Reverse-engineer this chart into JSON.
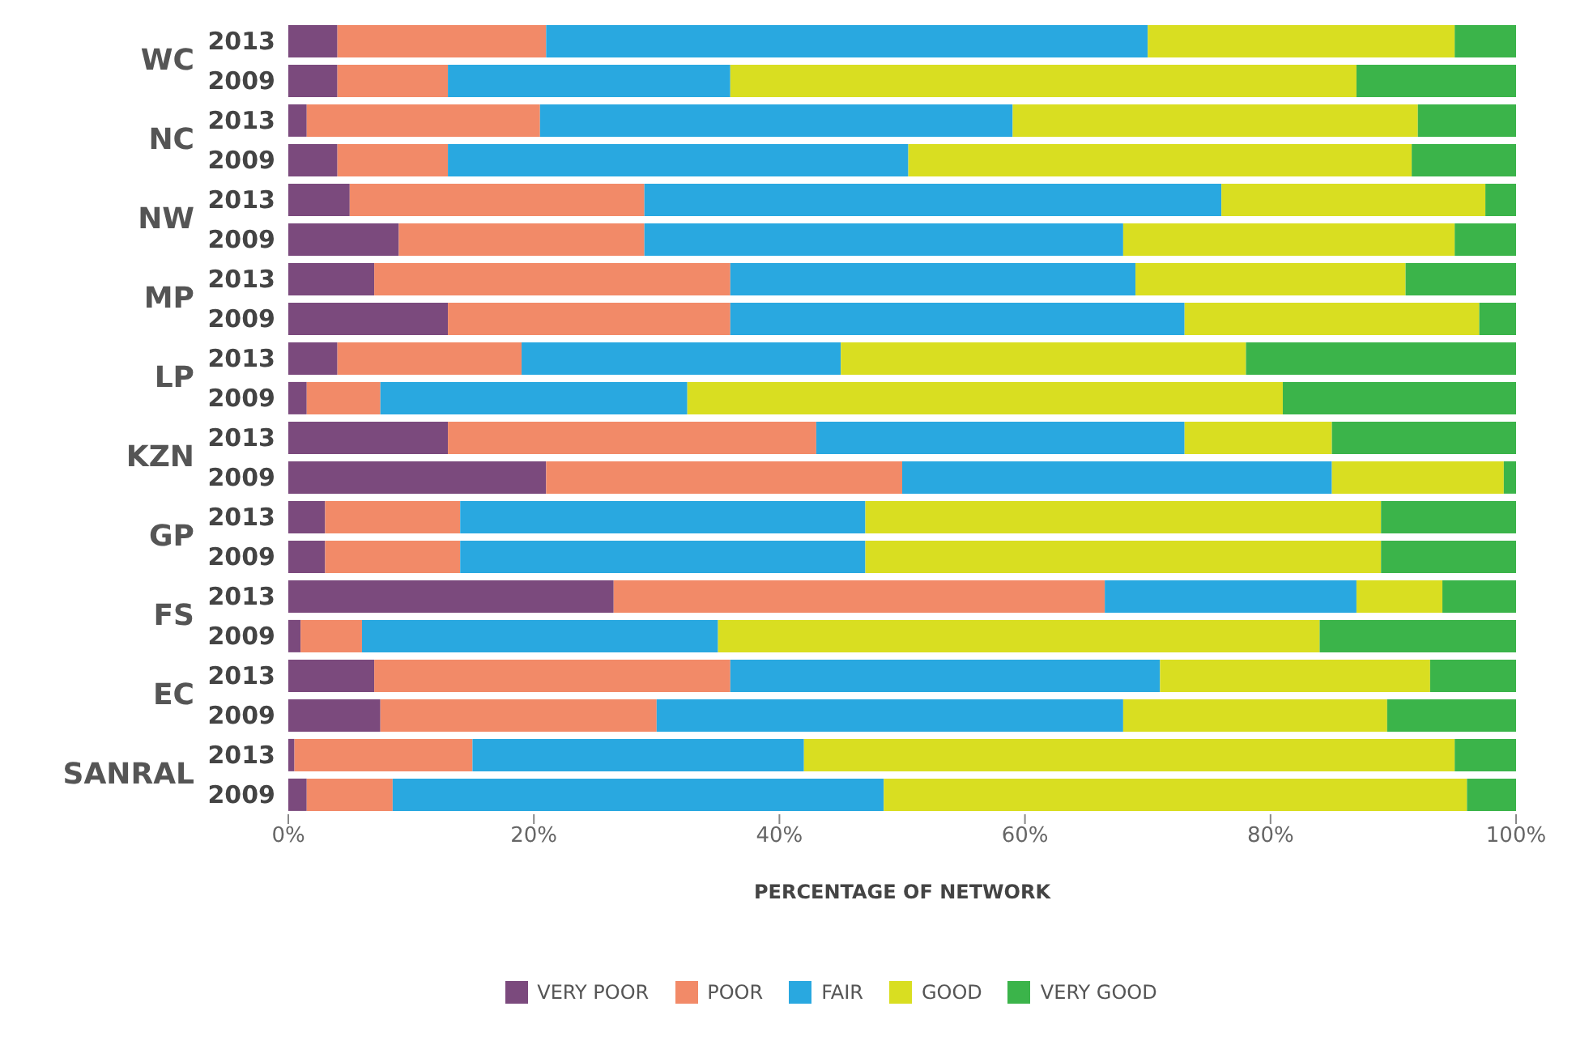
{
  "chart_data": {
    "type": "bar",
    "orientation": "horizontal",
    "stacked": true,
    "xlabel": "PERCENTAGE OF NETWORK",
    "categories": [
      "2013",
      "2009",
      "2013",
      "2009",
      "2013",
      "2009",
      "2013",
      "2009",
      "2013",
      "2009",
      "2013",
      "2009",
      "2013",
      "2009",
      "2013",
      "2009",
      "2013",
      "2009",
      "2013",
      "2009"
    ],
    "annotations": [
      "WC",
      "NC",
      "NW",
      "MP",
      "LP",
      "KZN",
      "GP",
      "FS",
      "EC",
      "SANRAL"
    ],
    "series": [
      {
        "name": "VERY POOR",
        "color": "#7b4a7d",
        "values": [
          4,
          4,
          1.5,
          4,
          5,
          9,
          7,
          13,
          4,
          1.5,
          13,
          21,
          3,
          3,
          26.5,
          1,
          7,
          7.5,
          0.5,
          1.5
        ]
      },
      {
        "name": "POOR",
        "color": "#f28a68",
        "values": [
          17,
          9,
          19,
          9,
          24,
          20,
          29,
          23,
          15,
          6,
          30,
          29,
          11,
          11,
          40,
          5,
          29,
          22.5,
          14.5,
          7
        ]
      },
      {
        "name": "FAIR",
        "color": "#29a8e0",
        "values": [
          49,
          23,
          38.5,
          37.5,
          47,
          39,
          33,
          37,
          26,
          25,
          30,
          35,
          33,
          33,
          20.5,
          29,
          35,
          38,
          27,
          40
        ]
      },
      {
        "name": "GOOD",
        "color": "#d9de21",
        "values": [
          25,
          51,
          33,
          41,
          21.5,
          27,
          22,
          24,
          33,
          48.5,
          12,
          14,
          42,
          42,
          7,
          49,
          22,
          21.5,
          53,
          47.5
        ]
      },
      {
        "name": "VERY GOOD",
        "color": "#3bb44a",
        "values": [
          5,
          13,
          8,
          8.5,
          2.5,
          5,
          9,
          3,
          22,
          19,
          15,
          1,
          11,
          11,
          6,
          16,
          7,
          10.5,
          5,
          4
        ]
      }
    ],
    "xlim": [
      0,
      100
    ],
    "xticks": [
      {
        "value": 0,
        "label": "0%"
      },
      {
        "value": 20,
        "label": "20%"
      },
      {
        "value": 40,
        "label": "40%"
      },
      {
        "value": 60,
        "label": "60%"
      },
      {
        "value": 80,
        "label": "80%"
      },
      {
        "value": 100,
        "label": "100%"
      }
    ],
    "grid": false,
    "legend": "bottom"
  }
}
